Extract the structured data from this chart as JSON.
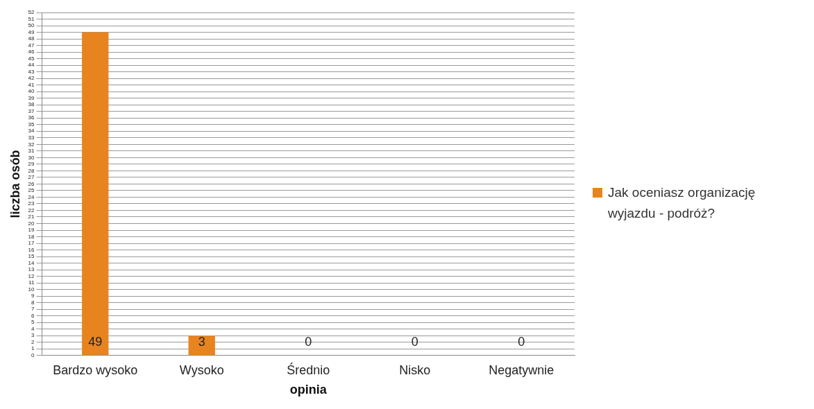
{
  "chart_data": {
    "type": "bar",
    "xlabel": "opinia",
    "ylabel": "liczba osób",
    "categories": [
      "Bardzo wysoko",
      "Wysoko",
      "Średnio",
      "Nisko",
      "Negatywnie"
    ],
    "series": [
      {
        "name": "Jak oceniasz organizację wyjazdu - podróż?",
        "color": "#e8841f",
        "values": [
          49,
          3,
          0,
          0,
          0
        ]
      }
    ],
    "ylim": [
      0,
      52
    ],
    "yticks": [
      0,
      1,
      2,
      3,
      4,
      5,
      6,
      7,
      8,
      9,
      10,
      11,
      12,
      13,
      14,
      15,
      16,
      17,
      18,
      19,
      20,
      21,
      22,
      23,
      24,
      25,
      26,
      27,
      28,
      29,
      30,
      31,
      32,
      33,
      34,
      35,
      36,
      37,
      38,
      39,
      40,
      41,
      42,
      43,
      44,
      45,
      46,
      47,
      48,
      49,
      50,
      51,
      52
    ],
    "grid": "y",
    "legend": "right",
    "data_labels": true
  }
}
